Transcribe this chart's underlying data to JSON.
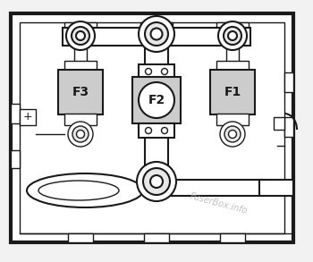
{
  "bg_color": "#f2f2f2",
  "line_color": "#1a1a1a",
  "fuse_fill": "#cccccc",
  "connector_fill": "#e8e8e8",
  "white": "#ffffff",
  "fuse_labels": [
    "F3",
    "F2",
    "F1"
  ],
  "watermark": "FuserBox.info",
  "lw_outer": 3.0,
  "lw_inner": 1.5,
  "lw_med": 1.5,
  "lw_thin": 1.0
}
